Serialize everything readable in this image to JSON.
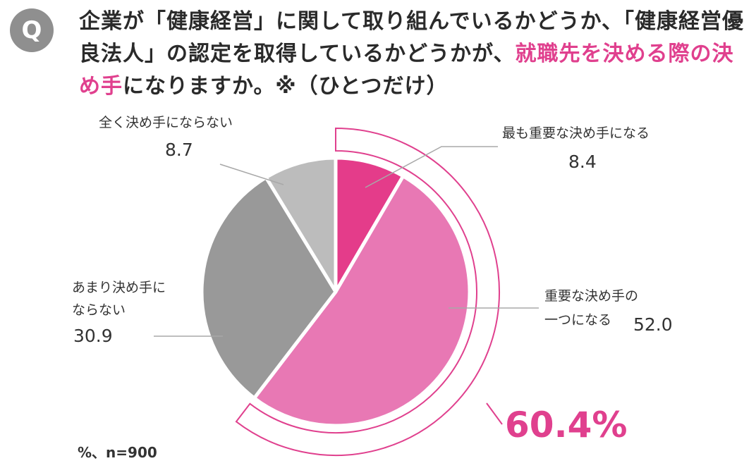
{
  "badge": "Q",
  "question": {
    "part1": "企業が「健康経営」に関して取り組んでいるかどうか、「健康経営優良法人」の認定を取得しているかどうかが、",
    "highlight": "就職先を決める際の決め手",
    "part2": "になりますか。※（ひとつだけ）"
  },
  "chart_data": {
    "type": "pie",
    "slices": [
      {
        "label": "最も重要な決め手になる",
        "value": 8.4,
        "color": "#e43c8a"
      },
      {
        "label": "重要な決め手の一つになる",
        "value": 52.0,
        "color": "#e878b4"
      },
      {
        "label": "あまり決め手にならない",
        "value": 30.9,
        "color": "#999999"
      },
      {
        "label": "全く決め手にならない",
        "value": 8.7,
        "color": "#bcbcbc"
      }
    ],
    "highlight_total": "60.4%",
    "highlight_color": "#e0408e",
    "note": "%、n=900"
  },
  "labels": {
    "s0": "最も重要な決め手になる",
    "s1a": "重要な決め手の",
    "s1b": "一つになる",
    "s2a": "あまり決め手に",
    "s2b": "ならない",
    "s3": "全く決め手にならない"
  }
}
